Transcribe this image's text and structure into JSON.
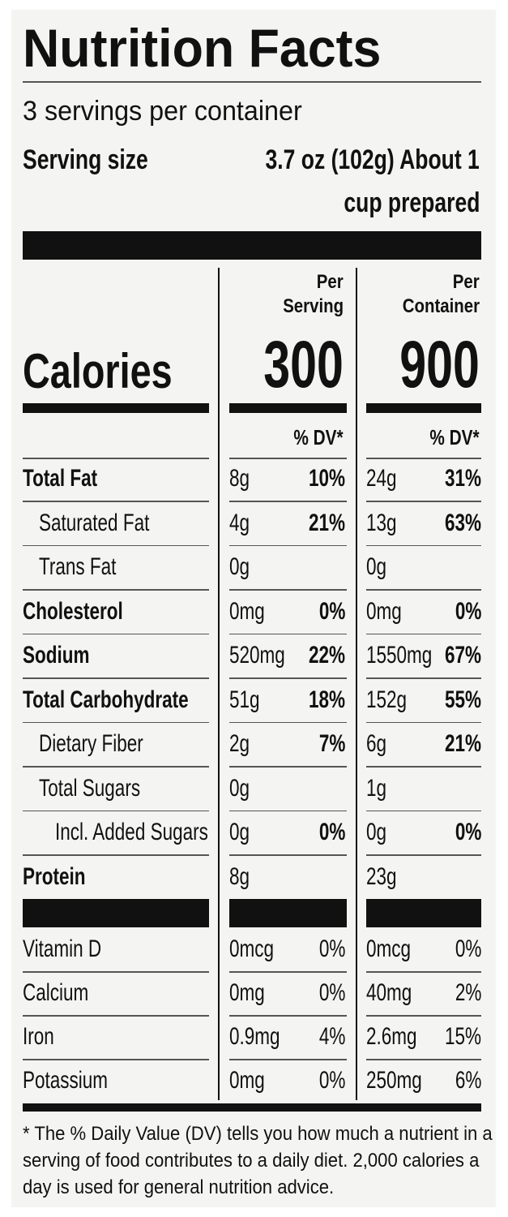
{
  "header": {
    "title": "Nutrition Facts",
    "servings": "3 servings per container",
    "serving_size_label": "Serving size",
    "serving_size_value": [
      "3.7 oz (102g) About 1",
      "cup prepared"
    ]
  },
  "columns": {
    "per_serving": [
      "Per",
      "Serving"
    ],
    "per_container": [
      "Per",
      "Container"
    ]
  },
  "calories": {
    "label": "Calories",
    "per_serving": "300",
    "per_container": "900"
  },
  "dv_headers": [
    "% DV*",
    "% DV*"
  ],
  "nutrients": [
    [
      "Total Fat",
      "8g",
      "10%",
      "24g",
      "31%"
    ],
    [
      "Saturated Fat",
      "4g",
      "21%",
      "13g",
      "63%"
    ],
    [
      "Trans Fat",
      "0g",
      null,
      "0g",
      null
    ],
    [
      "Cholesterol",
      "0mg",
      "0%",
      "0mg",
      "0%"
    ],
    [
      "Sodium",
      "520mg",
      "22%",
      "1550mg",
      "67%"
    ],
    [
      "Total Carbohydrate",
      "51g",
      "18%",
      "152g",
      "55%"
    ],
    [
      "Dietary Fiber",
      "2g",
      "7%",
      "6g",
      "21%"
    ],
    [
      "Total Sugars",
      "0g",
      null,
      "1g",
      null
    ],
    [
      "Incl. Added Sugars",
      "0g",
      "0%",
      "0g",
      "0%"
    ],
    [
      "Protein",
      "8g",
      null,
      "23g",
      null
    ]
  ],
  "vitamins": [
    [
      "Vitamin D",
      "0mcg",
      "0%",
      "0mcg",
      "0%"
    ],
    [
      "Calcium",
      "0mg",
      "0%",
      "40mg",
      "2%"
    ],
    [
      "Iron",
      "0.9mg",
      "4%",
      "2.6mg",
      "15%"
    ],
    [
      "Potassium",
      "0mg",
      "0%",
      "250mg",
      "6%"
    ]
  ],
  "footnote": [
    "* The % Daily Value (DV) tells you how much a nutrient in a",
    "serving of food contributes to a daily diet. 2,000 calories a",
    "day is used for general nutrition advice."
  ]
}
